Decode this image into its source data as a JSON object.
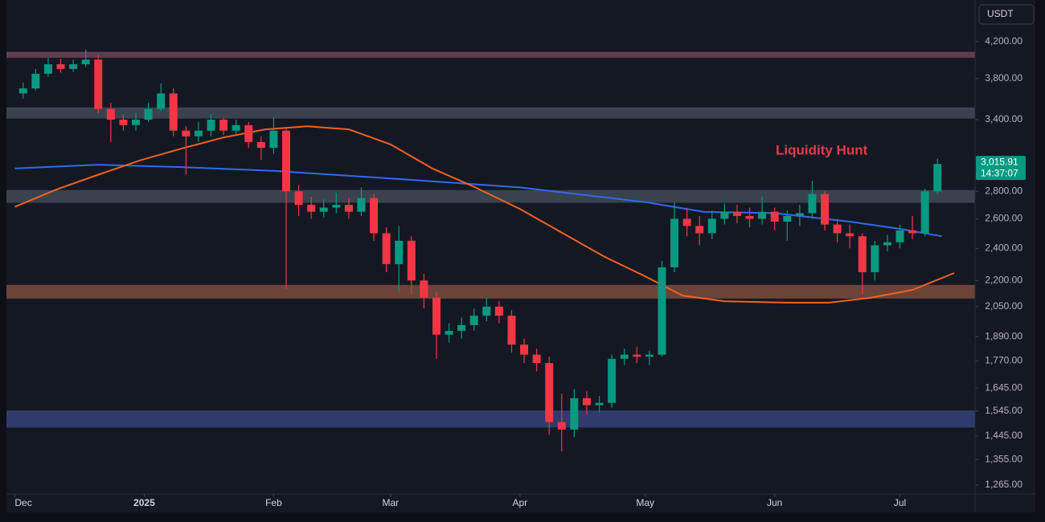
{
  "chart_data": {
    "type": "candlestick",
    "log_scale": true,
    "currency": "USDT",
    "annotation": "Liquidity Hunt",
    "price_label": "3,015.91",
    "countdown": "14:37:07",
    "up_color": "#089981",
    "down_color": "#f23645",
    "xlim": [
      -2,
      230
    ],
    "xticks": [
      {
        "value": 0,
        "label": "Dec"
      },
      {
        "value": 31,
        "label": "2025"
      },
      {
        "value": 62,
        "label": "Feb"
      },
      {
        "value": 90,
        "label": "Mar"
      },
      {
        "value": 121,
        "label": "Apr"
      },
      {
        "value": 151,
        "label": "May"
      },
      {
        "value": 182,
        "label": "Jun"
      },
      {
        "value": 212,
        "label": "Jul"
      }
    ],
    "ylim": [
      1235,
      4700
    ],
    "yticks": [
      {
        "value": 4200,
        "label": "4,200.00"
      },
      {
        "value": 3800,
        "label": "3,800.00"
      },
      {
        "value": 3400,
        "label": "3,400.00"
      },
      {
        "value": 2800,
        "label": "2,800.00"
      },
      {
        "value": 2600,
        "label": "2,600.00"
      },
      {
        "value": 2400,
        "label": "2,400.00"
      },
      {
        "value": 2200,
        "label": "2,200.00"
      },
      {
        "value": 2050,
        "label": "2,050.00"
      },
      {
        "value": 1890,
        "label": "1,890.00"
      },
      {
        "value": 1770,
        "label": "1,770.00"
      },
      {
        "value": 1645,
        "label": "1,645.00"
      },
      {
        "value": 1545,
        "label": "1,545.00"
      },
      {
        "value": 1445,
        "label": "1,445.00"
      },
      {
        "value": 1355,
        "label": "1,355.00"
      },
      {
        "value": 1265,
        "label": "1,265.00"
      }
    ],
    "zones": [
      {
        "range": [
          4020,
          4085
        ],
        "color": "#7a4a5e"
      },
      {
        "range": [
          3410,
          3515
        ],
        "color": "#47525c"
      },
      {
        "range": [
          2715,
          2810
        ],
        "color": "#47525c"
      },
      {
        "range": [
          2095,
          2174
        ],
        "color": "#8a5240"
      },
      {
        "range": [
          1478,
          1548
        ],
        "color": "#3a4585"
      }
    ],
    "lines": [
      {
        "color": "#2f6bf0",
        "x": [
          0,
          20,
          40,
          62,
          90,
          121,
          151,
          165,
          182,
          200,
          212,
          222
        ],
        "values": [
          2980,
          3010,
          2990,
          2960,
          2900,
          2830,
          2720,
          2650,
          2640,
          2580,
          2530,
          2480
        ]
      },
      {
        "color": "#f2621c",
        "x": [
          0,
          10,
          20,
          30,
          40,
          50,
          60,
          70,
          80,
          90,
          100,
          110,
          121,
          131,
          141,
          151,
          160,
          170,
          185,
          195,
          205,
          215,
          225
        ],
        "values": [
          2685,
          2815,
          2930,
          3045,
          3145,
          3240,
          3312,
          3340,
          3312,
          3180,
          2980,
          2835,
          2670,
          2505,
          2350,
          2225,
          2112,
          2080,
          2072,
          2072,
          2100,
          2145,
          2245
        ]
      }
    ],
    "candles": {
      "x": [
        2,
        5,
        8,
        11,
        14,
        17,
        20,
        23,
        26,
        29,
        32,
        35,
        38,
        41,
        44,
        47,
        50,
        53,
        56,
        59,
        62,
        65,
        68,
        71,
        74,
        77,
        80,
        83,
        86,
        89,
        92,
        95,
        98,
        101,
        104,
        107,
        110,
        113,
        116,
        119,
        122,
        125,
        128,
        131,
        134,
        137,
        140,
        143,
        146,
        149,
        152,
        155,
        158,
        161,
        164,
        167,
        170,
        173,
        176,
        179,
        182,
        185,
        188,
        191,
        194,
        197,
        200,
        203,
        206,
        209,
        212,
        215,
        218,
        221
      ],
      "open": [
        3650,
        3700,
        3850,
        3950,
        3900,
        3950,
        4000,
        3500,
        3400,
        3350,
        3400,
        3500,
        3650,
        3300,
        3250,
        3300,
        3400,
        3300,
        3350,
        3200,
        3150,
        3300,
        2800,
        2700,
        2650,
        2680,
        2700,
        2650,
        2750,
        2500,
        2300,
        2450,
        2200,
        2100,
        1900,
        1920,
        1950,
        2000,
        2050,
        2000,
        1850,
        1800,
        1760,
        1500,
        1470,
        1600,
        1570,
        1580,
        1780,
        1800,
        1790,
        1800,
        2280,
        2600,
        2550,
        2500,
        2600,
        2650,
        2620,
        2600,
        2650,
        2580,
        2620,
        2640,
        2780,
        2560,
        2500,
        2480,
        2250,
        2420,
        2440,
        2520,
        2500,
        2800
      ],
      "high": [
        3760,
        3900,
        4020,
        4010,
        4000,
        4110,
        4050,
        3560,
        3450,
        3460,
        3560,
        3750,
        3700,
        3340,
        3380,
        3450,
        3420,
        3400,
        3380,
        3250,
        3420,
        3320,
        2850,
        2760,
        2740,
        2790,
        2750,
        2830,
        2780,
        2540,
        2550,
        2480,
        2240,
        2130,
        1960,
        1990,
        2040,
        2100,
        2080,
        2030,
        1880,
        1830,
        1790,
        1620,
        1640,
        1630,
        1610,
        1800,
        1830,
        1840,
        1820,
        2320,
        2720,
        2680,
        2620,
        2660,
        2710,
        2700,
        2680,
        2760,
        2680,
        2660,
        2700,
        2880,
        2800,
        2600,
        2560,
        2500,
        2450,
        2490,
        2560,
        2620,
        2820,
        3060
      ],
      "low": [
        3600,
        3680,
        3820,
        3860,
        3870,
        3920,
        3460,
        3200,
        3300,
        3300,
        3380,
        3480,
        3250,
        2930,
        3200,
        3250,
        3260,
        3270,
        3150,
        3050,
        3100,
        2150,
        2620,
        2600,
        2610,
        2640,
        2600,
        2620,
        2450,
        2250,
        2130,
        2120,
        2040,
        1780,
        1860,
        1880,
        1920,
        1970,
        1960,
        1810,
        1760,
        1720,
        1450,
        1385,
        1440,
        1530,
        1540,
        1560,
        1750,
        1760,
        1750,
        1790,
        2250,
        2480,
        2420,
        2460,
        2560,
        2570,
        2540,
        2560,
        2520,
        2450,
        2550,
        2600,
        2520,
        2440,
        2400,
        2120,
        2200,
        2380,
        2400,
        2460,
        2480,
        2780
      ],
      "close": [
        3700,
        3850,
        3950,
        3900,
        3950,
        4000,
        3500,
        3400,
        3350,
        3400,
        3500,
        3650,
        3300,
        3250,
        3300,
        3400,
        3300,
        3350,
        3200,
        3150,
        3300,
        2800,
        2700,
        2650,
        2680,
        2700,
        2650,
        2750,
        2500,
        2300,
        2450,
        2200,
        2100,
        1900,
        1920,
        1950,
        2000,
        2050,
        2000,
        1850,
        1800,
        1760,
        1500,
        1470,
        1600,
        1570,
        1580,
        1780,
        1800,
        1790,
        1800,
        2280,
        2600,
        2550,
        2500,
        2600,
        2650,
        2620,
        2600,
        2650,
        2580,
        2620,
        2640,
        2780,
        2560,
        2500,
        2480,
        2250,
        2420,
        2440,
        2520,
        2500,
        2800,
        3015.91
      ]
    }
  }
}
